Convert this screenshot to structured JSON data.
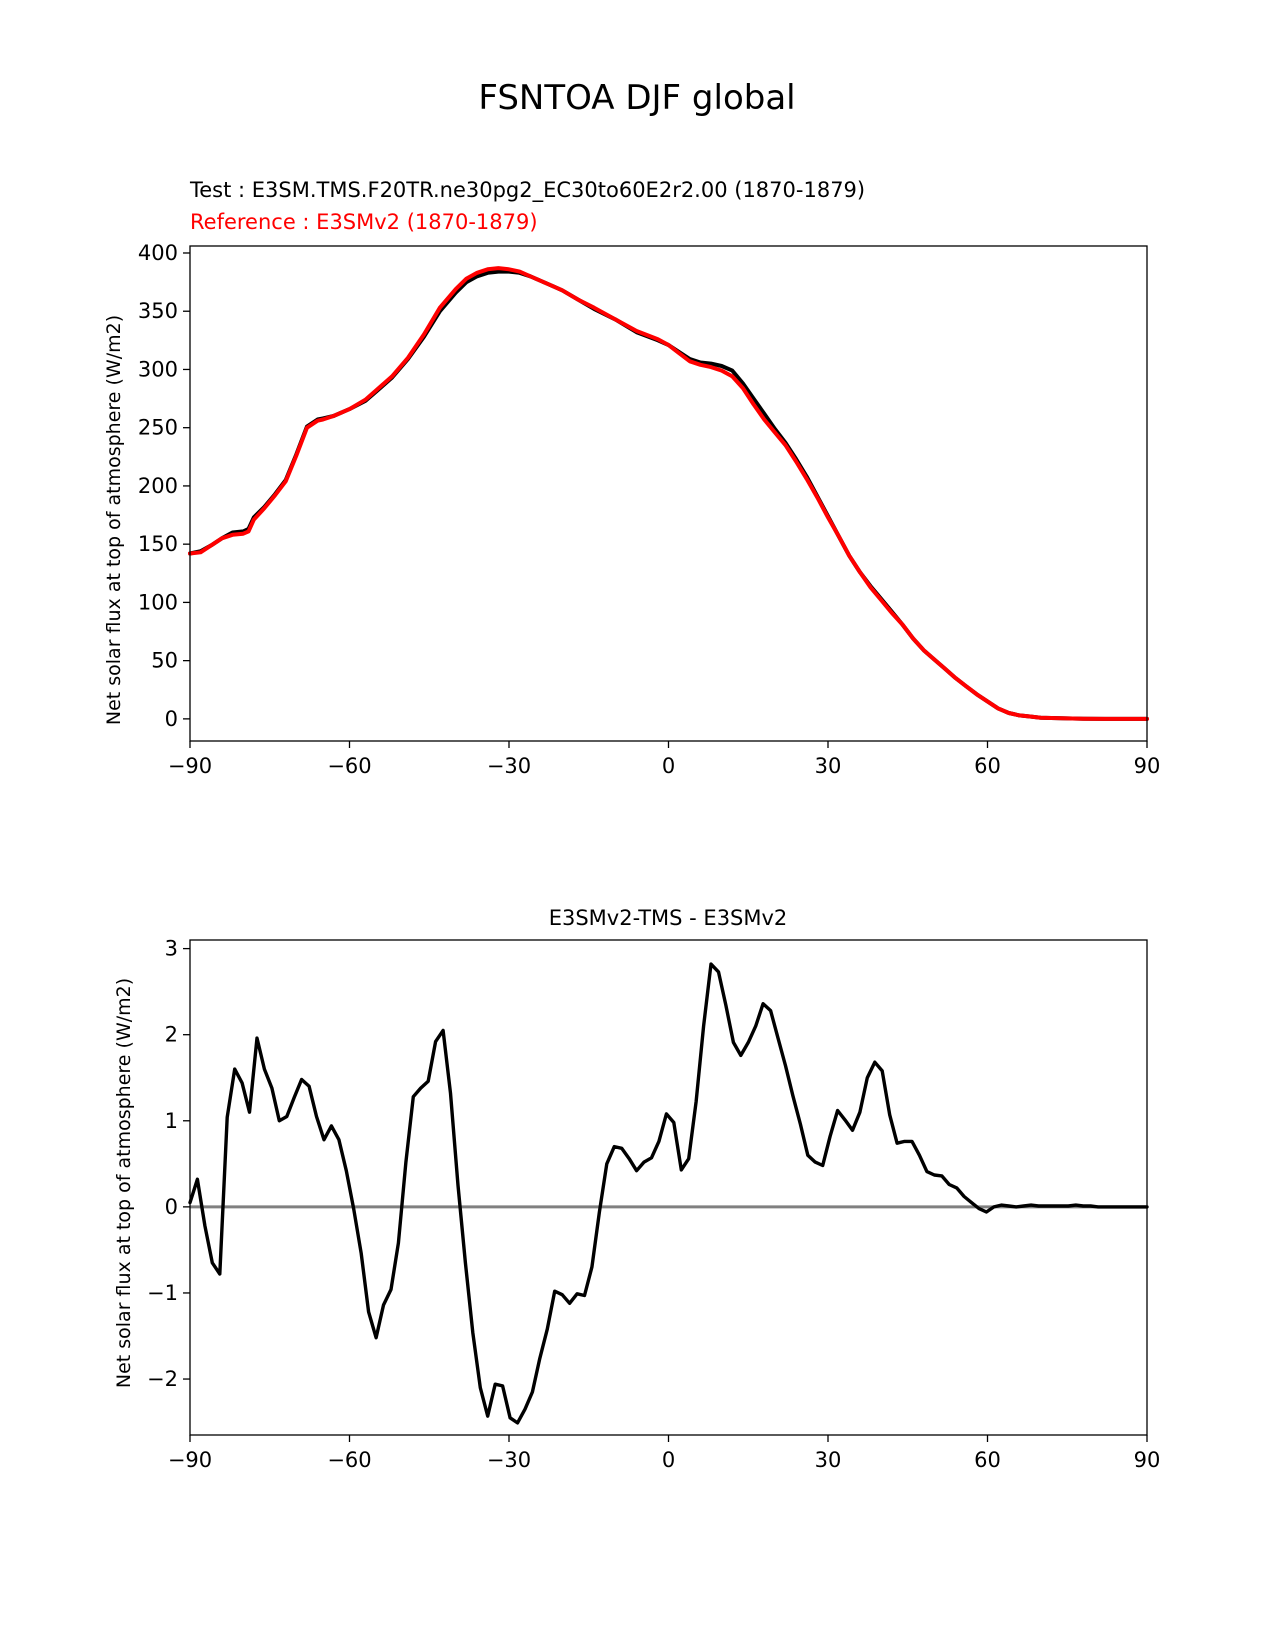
{
  "figure_title": "FSNTOA DJF global",
  "colors": {
    "test": "#000000",
    "reference": "#ff0000",
    "zero_line": "#808080",
    "text": "#000000"
  },
  "chart_data": [
    {
      "type": "line",
      "subtitle_test": "Test : E3SM.TMS.F20TR.ne30pg2_EC30to60E2r2.00 (1870-1879)",
      "subtitle_reference": "Reference : E3SMv2 (1870-1879)",
      "xlabel": "",
      "ylabel": "Net solar flux at top of atmosphere (W/m2)",
      "xlim": [
        -90,
        90
      ],
      "ylim": [
        -19,
        406
      ],
      "xticks": [
        -90,
        -60,
        -30,
        0,
        30,
        60,
        90
      ],
      "xtick_labels": [
        "−90",
        "−60",
        "−30",
        "0",
        "30",
        "60",
        "90"
      ],
      "yticks": [
        0,
        50,
        100,
        150,
        200,
        250,
        300,
        350,
        400
      ],
      "ytick_labels": [
        "0",
        "50",
        "100",
        "150",
        "200",
        "250",
        "300",
        "350",
        "400"
      ],
      "series": [
        {
          "name": "Test",
          "x": [
            -90,
            -88,
            -86,
            -84,
            -82,
            -80,
            -79,
            -78,
            -76,
            -74,
            -72,
            -70,
            -68,
            -66,
            -65,
            -63,
            -60,
            -57,
            -55,
            -52,
            -49,
            -46,
            -43,
            -40,
            -38,
            -36,
            -34,
            -32,
            -30,
            -28,
            -26,
            -24,
            -22,
            -20,
            -17,
            -14,
            -10,
            -6,
            -2,
            0,
            2,
            4,
            6,
            8,
            10,
            12,
            14,
            16,
            18,
            20,
            22,
            24,
            26,
            28,
            30,
            32,
            34,
            36,
            38,
            40,
            42,
            44,
            46,
            48,
            50,
            52,
            54,
            56,
            58,
            60,
            62,
            64,
            66,
            68,
            70,
            74,
            78,
            82,
            86,
            90
          ],
          "values": [
            142,
            144,
            149,
            155,
            160,
            161,
            163,
            173,
            182,
            193,
            205,
            227,
            251,
            257,
            258,
            260,
            266,
            273,
            281,
            293,
            309,
            328,
            350,
            366,
            375,
            380,
            383,
            384,
            384,
            383,
            380,
            376,
            372,
            368,
            360,
            352,
            343,
            332,
            325,
            321,
            315,
            309,
            306,
            305,
            303,
            299,
            288,
            275,
            262,
            249,
            237,
            223,
            208,
            191,
            174,
            157,
            140,
            126,
            114,
            103,
            92,
            81,
            69,
            59,
            51,
            43,
            35,
            28,
            21,
            15,
            9,
            5,
            3,
            2,
            1,
            0.5,
            0.1,
            0,
            0,
            0
          ]
        },
        {
          "name": "Reference",
          "x": [
            -90,
            -88,
            -86,
            -84,
            -82,
            -80,
            -79,
            -78,
            -76,
            -74,
            -72,
            -70,
            -68,
            -66,
            -65,
            -63,
            -60,
            -57,
            -55,
            -52,
            -49,
            -46,
            -43,
            -40,
            -38,
            -36,
            -34,
            -32,
            -30,
            -28,
            -26,
            -24,
            -22,
            -20,
            -17,
            -14,
            -10,
            -6,
            -2,
            0,
            2,
            4,
            6,
            8,
            10,
            12,
            14,
            16,
            18,
            20,
            22,
            24,
            26,
            28,
            30,
            32,
            34,
            36,
            38,
            40,
            42,
            44,
            46,
            48,
            50,
            52,
            54,
            56,
            58,
            60,
            62,
            64,
            66,
            68,
            70,
            74,
            78,
            82,
            86,
            90
          ],
          "values": [
            142,
            143,
            149,
            155,
            158,
            159,
            161,
            171,
            181,
            192,
            204,
            226,
            250,
            256,
            257,
            260,
            266,
            274,
            282,
            294,
            310,
            330,
            353,
            369,
            378,
            383,
            386,
            387,
            386,
            384,
            380,
            376,
            372,
            368,
            360,
            353,
            343,
            333,
            326,
            321,
            314,
            307,
            304,
            302,
            299,
            294,
            284,
            270,
            257,
            246,
            235,
            221,
            206,
            190,
            173,
            157,
            140,
            126,
            113,
            102,
            91,
            81,
            69,
            59,
            51,
            43,
            35,
            28,
            21,
            15,
            9,
            5,
            3,
            2,
            1,
            0.5,
            0.1,
            0,
            0,
            0
          ]
        }
      ]
    },
    {
      "type": "line",
      "title": "E3SMv2-TMS - E3SMv2",
      "xlabel": "",
      "ylabel": "Net solar flux at top of atmosphere (W/m2)",
      "xlim": [
        -90,
        90
      ],
      "ylim": [
        -2.65,
        3.1
      ],
      "xticks": [
        -90,
        -60,
        -30,
        0,
        30,
        60,
        90
      ],
      "xtick_labels": [
        "−90",
        "−60",
        "−30",
        "0",
        "30",
        "60",
        "90"
      ],
      "yticks": [
        -2,
        -1,
        0,
        1,
        2,
        3
      ],
      "ytick_labels": [
        "−2",
        "−1",
        "0",
        "1",
        "2",
        "3"
      ],
      "zero_line": 0,
      "series": [
        {
          "name": "E3SMv2-TMS - E3SMv2",
          "x": [
            -90,
            -88.6,
            -87.2,
            -85.8,
            -84.4,
            -83,
            -81.6,
            -80.2,
            -78.8,
            -77.4,
            -76,
            -74.6,
            -73.2,
            -71.8,
            -70.4,
            -69,
            -67.6,
            -66.2,
            -64.8,
            -63.4,
            -62,
            -60.6,
            -59.2,
            -57.8,
            -56.4,
            -55,
            -53.6,
            -52.2,
            -50.8,
            -49.4,
            -48,
            -46.6,
            -45.2,
            -43.8,
            -42.4,
            -41,
            -39.6,
            -38.2,
            -36.8,
            -35.4,
            -34,
            -32.6,
            -31.2,
            -29.8,
            -28.4,
            -27,
            -25.6,
            -24.2,
            -22.8,
            -21.4,
            -20,
            -18.6,
            -17.2,
            -15.8,
            -14.4,
            -13,
            -11.6,
            -10.2,
            -8.8,
            -7.4,
            -6,
            -4.6,
            -3.2,
            -1.8,
            -0.4,
            1,
            2.4,
            3.8,
            5.2,
            6.6,
            8,
            9.4,
            10.8,
            12.2,
            13.6,
            15,
            16.4,
            17.8,
            19.2,
            20.6,
            22,
            23.4,
            24.8,
            26.2,
            27.6,
            29,
            30.4,
            31.8,
            33.2,
            34.6,
            36,
            37.4,
            38.8,
            40.2,
            41.6,
            43,
            44.4,
            45.8,
            47.2,
            48.6,
            50,
            51.4,
            52.8,
            54.2,
            55.6,
            57,
            58.4,
            59.8,
            61.2,
            62.6,
            64,
            65.4,
            66.8,
            68.2,
            69.6,
            71,
            72.4,
            73.8,
            75.2,
            76.6,
            78,
            79.4,
            80.8,
            82.2,
            83.6,
            85,
            86.4,
            87.8,
            89.2,
            90
          ],
          "values": [
            0.05,
            0.32,
            -0.22,
            -0.65,
            -0.78,
            1.04,
            1.6,
            1.44,
            1.1,
            1.96,
            1.6,
            1.38,
            1.0,
            1.05,
            1.27,
            1.48,
            1.4,
            1.05,
            0.78,
            0.94,
            0.78,
            0.42,
            -0.03,
            -0.54,
            -1.22,
            -1.52,
            -1.14,
            -0.96,
            -0.42,
            0.52,
            1.28,
            1.38,
            1.46,
            1.92,
            2.05,
            1.32,
            0.25,
            -0.65,
            -1.46,
            -2.1,
            -2.43,
            -2.06,
            -2.08,
            -2.45,
            -2.51,
            -2.35,
            -2.15,
            -1.76,
            -1.42,
            -0.98,
            -1.02,
            -1.12,
            -1.01,
            -1.03,
            -0.7,
            -0.06,
            0.5,
            0.7,
            0.68,
            0.56,
            0.42,
            0.52,
            0.57,
            0.76,
            1.08,
            0.98,
            0.43,
            0.56,
            1.22,
            2.1,
            2.82,
            2.73,
            2.34,
            1.91,
            1.76,
            1.91,
            2.1,
            2.36,
            2.28,
            1.96,
            1.64,
            1.29,
            0.96,
            0.6,
            0.52,
            0.48,
            0.82,
            1.12,
            1.01,
            0.89,
            1.1,
            1.5,
            1.68,
            1.58,
            1.07,
            0.74,
            0.76,
            0.76,
            0.6,
            0.41,
            0.37,
            0.36,
            0.26,
            0.22,
            0.12,
            0.05,
            -0.02,
            -0.06,
            0.0,
            0.02,
            0.01,
            0.0,
            0.01,
            0.02,
            0.01,
            0.01,
            0.01,
            0.01,
            0.01,
            0.02,
            0.01,
            0.01,
            0.0,
            0.0,
            0.0,
            0.0,
            0.0,
            0.0,
            0.0,
            0.0
          ]
        }
      ]
    }
  ]
}
